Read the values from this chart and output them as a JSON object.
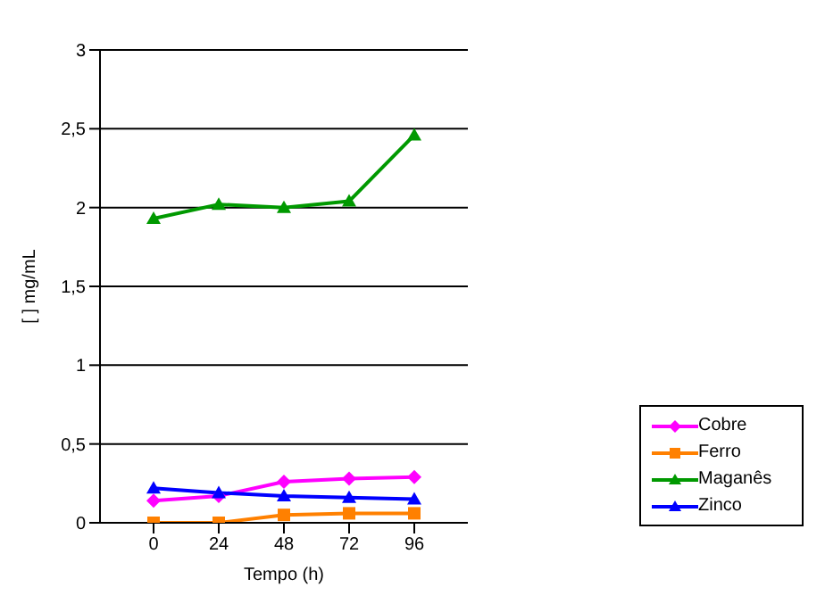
{
  "chart_data": {
    "type": "line",
    "xlabel": "Tempo (h)",
    "ylabel": "[ ] mg/mL",
    "categories": [
      "0",
      "24",
      "48",
      "72",
      "96"
    ],
    "series": [
      {
        "name": "Cobre",
        "color": "#ff00ff",
        "marker": "diamond",
        "values": [
          0.14,
          0.17,
          0.26,
          0.28,
          0.29
        ]
      },
      {
        "name": "Ferro",
        "color": "#ff8000",
        "marker": "square",
        "values": [
          0,
          0,
          0.05,
          0.06,
          0.06
        ]
      },
      {
        "name": "Maganês",
        "color": "#009900",
        "marker": "triangle",
        "values": [
          1.93,
          2.02,
          2.0,
          2.04,
          2.46
        ]
      },
      {
        "name": "Zinco",
        "color": "#0000ff",
        "marker": "triangle",
        "values": [
          0.22,
          0.19,
          0.17,
          0.16,
          0.15
        ]
      }
    ],
    "ylim": [
      0,
      3
    ],
    "yticks": [
      {
        "value": 0,
        "label": "0"
      },
      {
        "value": 0.5,
        "label": "0,5"
      },
      {
        "value": 1,
        "label": "1"
      },
      {
        "value": 1.5,
        "label": "1,5"
      },
      {
        "value": 2,
        "label": "2"
      },
      {
        "value": 2.5,
        "label": "2,5"
      },
      {
        "value": 3,
        "label": "3"
      }
    ],
    "grid": "y",
    "legend": "right"
  }
}
